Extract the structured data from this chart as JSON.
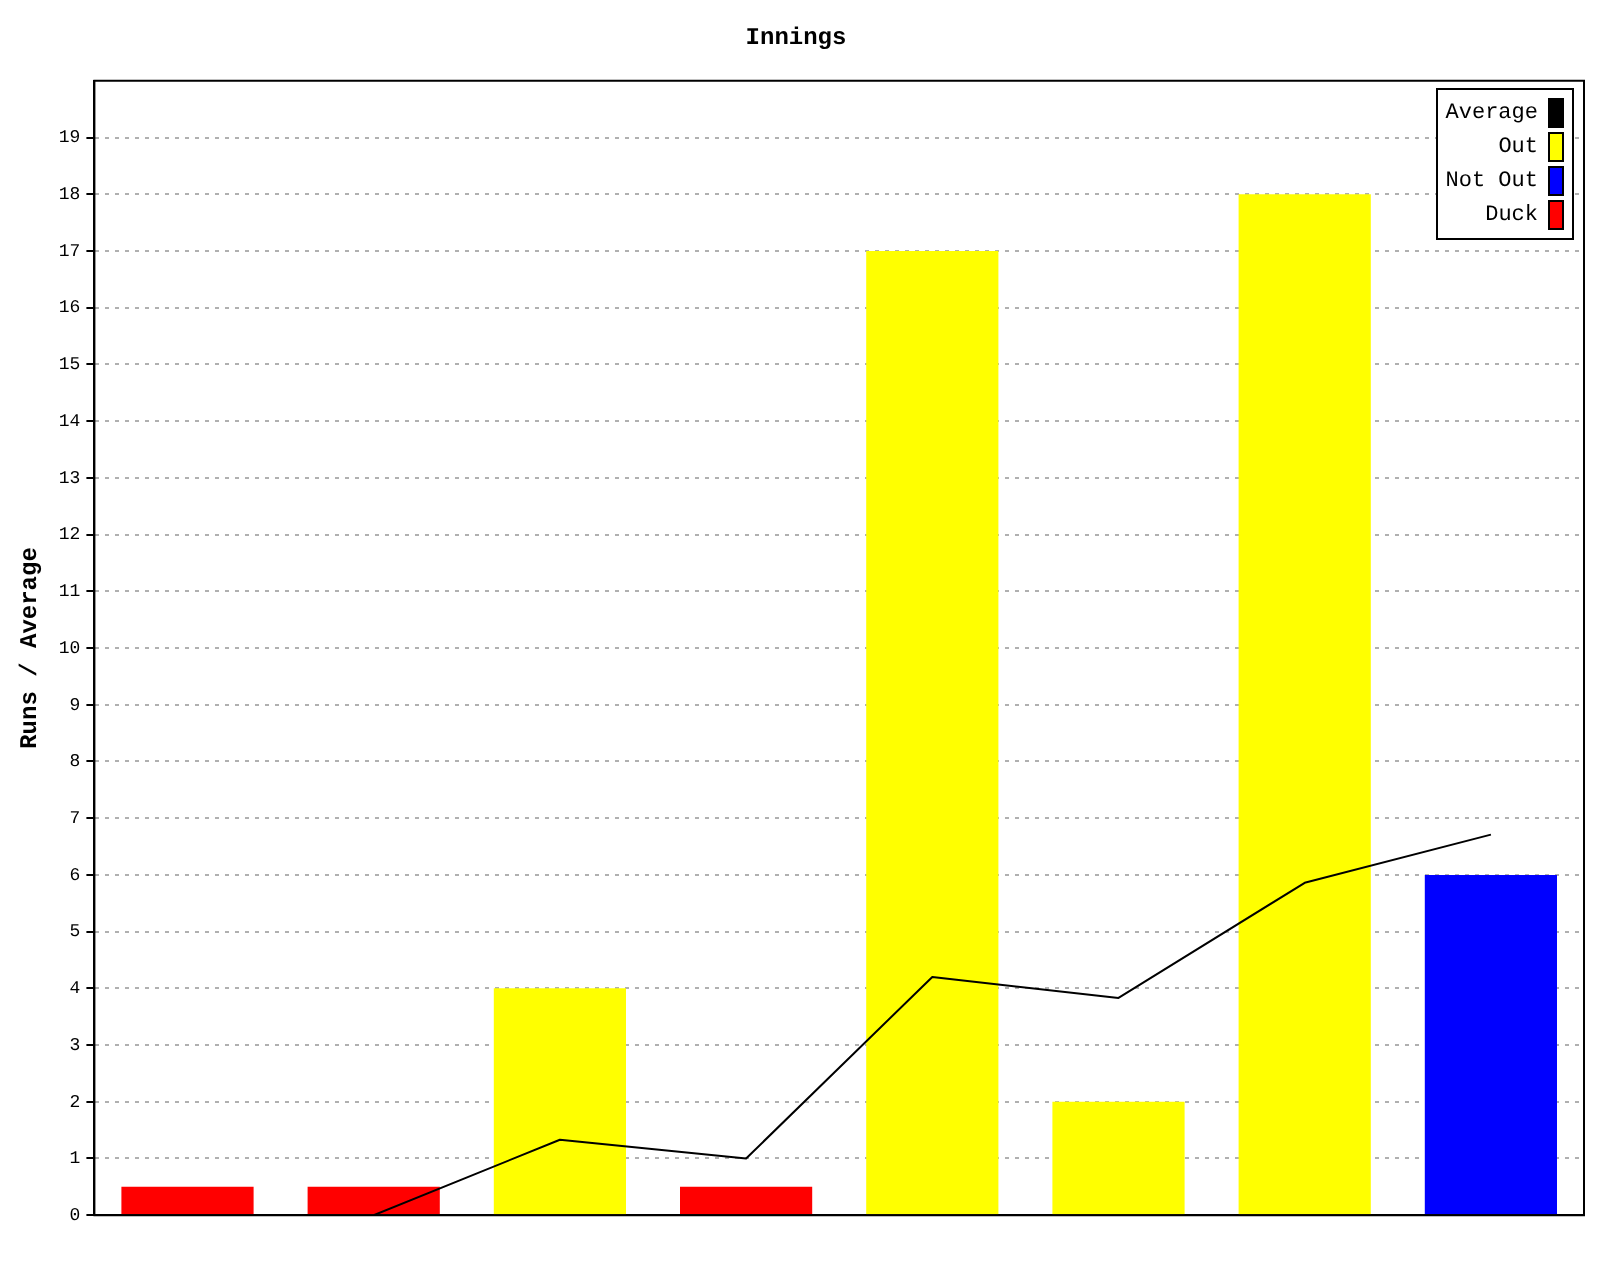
{
  "chart_data": {
    "type": "bar",
    "title": "Innings",
    "ylabel": "Runs / Average",
    "categories": [
      null,
      null,
      null,
      null,
      null,
      null,
      null,
      null
    ],
    "stacked": true,
    "series": [
      {
        "name": "Average",
        "type": "line",
        "color": "#000000",
        "values": [
          null,
          0,
          1.33,
          1,
          4.2,
          3.83,
          5.86,
          6.71
        ]
      },
      {
        "name": "Out",
        "color": "#ffff00",
        "values": [
          null,
          null,
          4,
          null,
          17,
          2,
          18,
          null
        ]
      },
      {
        "name": "Not Out",
        "color": "#0000ff",
        "values": [
          null,
          null,
          null,
          null,
          null,
          null,
          null,
          6
        ]
      },
      {
        "name": "Duck",
        "color": "#ff0000",
        "values": [
          0.5,
          0.5,
          null,
          0.5,
          null,
          null,
          null,
          null
        ]
      }
    ],
    "ylim": [
      0,
      20
    ],
    "yticks": [
      0,
      1,
      2,
      3,
      4,
      5,
      6,
      7,
      8,
      9,
      10,
      11,
      12,
      13,
      14,
      15,
      16,
      17,
      18,
      19
    ],
    "grid": "y",
    "legend": "top right",
    "marker": "none"
  }
}
